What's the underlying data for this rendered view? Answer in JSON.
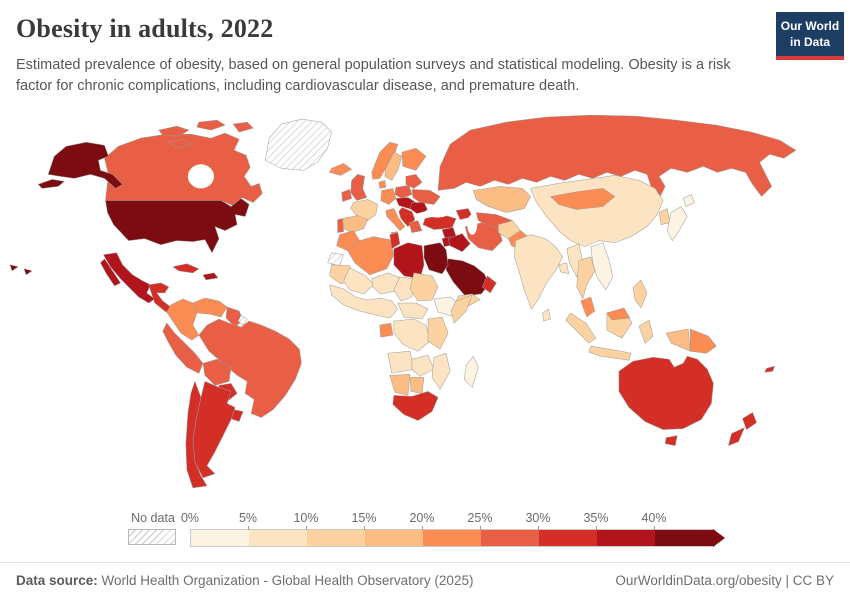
{
  "header": {
    "title": "Obesity in adults, 2022",
    "subtitle": "Estimated prevalence of obesity, based on general population surveys and statistical modeling. Obesity is a risk factor for chronic complications, including cardiovascular disease, and premature death.",
    "logo": {
      "line1": "Our World",
      "line2": "in Data",
      "bg": "#1d3d63",
      "accent": "#d73a3a"
    }
  },
  "legend": {
    "no_data_label": "No data",
    "tick_labels": [
      "0%",
      "5%",
      "10%",
      "15%",
      "20%",
      "25%",
      "30%",
      "35%",
      "40%"
    ],
    "bin_ranges": [
      "0–5%",
      "5–10%",
      "10–15%",
      "15–20%",
      "20–25%",
      "25–30%",
      "30–35%",
      "35–40%",
      "40%+"
    ],
    "bin_colors": [
      "#fdf3e2",
      "#fce4c2",
      "#fbd2a0",
      "#fbbd83",
      "#fb8d54",
      "#e95f45",
      "#d32f27",
      "#b1141a",
      "#7c0c11"
    ]
  },
  "footer": {
    "source_label": "Data source:",
    "source_text": " World Health Organization - Global Health Observatory (2025)",
    "credit": "OurWorldinData.org/obesity | CC BY"
  },
  "chart_data": {
    "type": "choropleth",
    "title": "Obesity in adults, 2022",
    "unit": "share of adults with obesity (%)",
    "no_data_label": "No data",
    "bins": [
      "0–5%",
      "5–10%",
      "10–15%",
      "15–20%",
      "20–25%",
      "25–30%",
      "30–35%",
      "35–40%",
      "40%+"
    ],
    "regions": [
      {
        "id": "canada",
        "name": "Canada",
        "bin": 5
      },
      {
        "id": "canada-arctic",
        "name": "Canada (Arctic islands)",
        "bin": 5
      },
      {
        "id": "usa",
        "name": "United States",
        "bin": 8
      },
      {
        "id": "usa-alaska",
        "name": "United States (Alaska)",
        "bin": 8
      },
      {
        "id": "usa-hawaii",
        "name": "United States (Hawaii)",
        "bin": 8
      },
      {
        "id": "greenland",
        "name": "Greenland",
        "bin": "no_data"
      },
      {
        "id": "mexico",
        "name": "Mexico",
        "bin": 7
      },
      {
        "id": "central-america",
        "name": "Central America",
        "bin": 6
      },
      {
        "id": "cuba",
        "name": "Cuba",
        "bin": 6
      },
      {
        "id": "hispaniola",
        "name": "Haiti / Dominican Republic",
        "bin": 7
      },
      {
        "id": "colombia",
        "name": "Colombia",
        "bin": 4
      },
      {
        "id": "venezuela",
        "name": "Venezuela",
        "bin": 4
      },
      {
        "id": "guyanas",
        "name": "Guyana / Suriname",
        "bin": 5
      },
      {
        "id": "french-guiana",
        "name": "French Guiana",
        "bin": "no_data"
      },
      {
        "id": "peru",
        "name": "Peru",
        "bin": 5
      },
      {
        "id": "brazil",
        "name": "Brazil",
        "bin": 5
      },
      {
        "id": "bolivia",
        "name": "Bolivia",
        "bin": 5
      },
      {
        "id": "paraguay",
        "name": "Paraguay",
        "bin": 6
      },
      {
        "id": "uruguay",
        "name": "Uruguay",
        "bin": 6
      },
      {
        "id": "argentina",
        "name": "Argentina",
        "bin": 6
      },
      {
        "id": "chile",
        "name": "Chile",
        "bin": 6
      },
      {
        "id": "iceland",
        "name": "Iceland",
        "bin": 4
      },
      {
        "id": "norway",
        "name": "Norway",
        "bin": 4
      },
      {
        "id": "sweden",
        "name": "Sweden",
        "bin": 3
      },
      {
        "id": "finland",
        "name": "Finland",
        "bin": 4
      },
      {
        "id": "denmark",
        "name": "Denmark",
        "bin": 4
      },
      {
        "id": "uk",
        "name": "United Kingdom",
        "bin": 5
      },
      {
        "id": "ireland",
        "name": "Ireland",
        "bin": 5
      },
      {
        "id": "france",
        "name": "France",
        "bin": 2
      },
      {
        "id": "spain",
        "name": "Spain",
        "bin": 3
      },
      {
        "id": "portugal",
        "name": "Portugal",
        "bin": 5
      },
      {
        "id": "germany",
        "name": "Germany",
        "bin": 4
      },
      {
        "id": "italy",
        "name": "Italy",
        "bin": 4
      },
      {
        "id": "poland",
        "name": "Poland",
        "bin": 5
      },
      {
        "id": "belarus-baltics",
        "name": "Belarus / Baltic states",
        "bin": 5
      },
      {
        "id": "ukraine",
        "name": "Ukraine",
        "bin": 5
      },
      {
        "id": "central-europe",
        "name": "Czechia / Slovakia / Hungary",
        "bin": 7
      },
      {
        "id": "romania",
        "name": "Romania",
        "bin": 7
      },
      {
        "id": "balkans",
        "name": "Balkans",
        "bin": 6
      },
      {
        "id": "greece",
        "name": "Greece",
        "bin": 5
      },
      {
        "id": "russia",
        "name": "Russia",
        "bin": 5
      },
      {
        "id": "kazakhstan",
        "name": "Kazakhstan",
        "bin": 3
      },
      {
        "id": "central-asia",
        "name": "Uzbekistan / Turkmenistan",
        "bin": 5
      },
      {
        "id": "caucasus",
        "name": "Caucasus",
        "bin": 6
      },
      {
        "id": "turkey",
        "name": "Turkey",
        "bin": 6
      },
      {
        "id": "syria",
        "name": "Syria",
        "bin": 7
      },
      {
        "id": "jordan-israel",
        "name": "Jordan / Israel",
        "bin": 7
      },
      {
        "id": "iraq",
        "name": "Iraq",
        "bin": 7
      },
      {
        "id": "iran",
        "name": "Iran",
        "bin": 5
      },
      {
        "id": "afghanistan",
        "name": "Afghanistan",
        "bin": 2
      },
      {
        "id": "pakistan",
        "name": "Pakistan",
        "bin": 4
      },
      {
        "id": "saudi-arabia",
        "name": "Saudi Arabia",
        "bin": 8
      },
      {
        "id": "oman",
        "name": "Oman",
        "bin": 6
      },
      {
        "id": "yemen",
        "name": "Yemen",
        "bin": 2
      },
      {
        "id": "india",
        "name": "India",
        "bin": 1
      },
      {
        "id": "bangladesh",
        "name": "Bangladesh",
        "bin": 1
      },
      {
        "id": "sri-lanka",
        "name": "Sri Lanka",
        "bin": 1
      },
      {
        "id": "china",
        "name": "China",
        "bin": 1
      },
      {
        "id": "mongolia",
        "name": "Mongolia",
        "bin": 4
      },
      {
        "id": "korea",
        "name": "South Korea",
        "bin": 2
      },
      {
        "id": "japan",
        "name": "Japan",
        "bin": 0
      },
      {
        "id": "myanmar",
        "name": "Myanmar",
        "bin": 1
      },
      {
        "id": "thailand",
        "name": "Thailand",
        "bin": 2
      },
      {
        "id": "vietnam",
        "name": "Vietnam",
        "bin": 0
      },
      {
        "id": "malaysia",
        "name": "Malaysia",
        "bin": 4
      },
      {
        "id": "sumatra",
        "name": "Indonesia (Sumatra)",
        "bin": 2
      },
      {
        "id": "borneo",
        "name": "Indonesia (Borneo)",
        "bin": 2
      },
      {
        "id": "malaysia-borneo",
        "name": "Malaysia (Borneo)",
        "bin": 4
      },
      {
        "id": "java",
        "name": "Indonesia (Java)",
        "bin": 2
      },
      {
        "id": "sulawesi",
        "name": "Indonesia (Sulawesi)",
        "bin": 2
      },
      {
        "id": "philippines",
        "name": "Philippines",
        "bin": 2
      },
      {
        "id": "new-guinea-west",
        "name": "Indonesia (Papua)",
        "bin": 3
      },
      {
        "id": "png",
        "name": "Papua New Guinea",
        "bin": 4
      },
      {
        "id": "fiji",
        "name": "Fiji",
        "bin": 6
      },
      {
        "id": "morocco",
        "name": "Morocco",
        "bin": 4
      },
      {
        "id": "western-sahara",
        "name": "Western Sahara",
        "bin": "no_data"
      },
      {
        "id": "algeria",
        "name": "Algeria",
        "bin": 4
      },
      {
        "id": "tunisia",
        "name": "Tunisia",
        "bin": 6
      },
      {
        "id": "libya",
        "name": "Libya",
        "bin": 7
      },
      {
        "id": "egypt",
        "name": "Egypt",
        "bin": 8
      },
      {
        "id": "mauritania",
        "name": "Mauritania",
        "bin": 2
      },
      {
        "id": "mali",
        "name": "Mali",
        "bin": 1
      },
      {
        "id": "niger",
        "name": "Niger",
        "bin": 1
      },
      {
        "id": "chad",
        "name": "Chad",
        "bin": 1
      },
      {
        "id": "sudan",
        "name": "Sudan",
        "bin": 2
      },
      {
        "id": "west-africa",
        "name": "West Africa (Senegal–Nigeria)",
        "bin": 1
      },
      {
        "id": "ethiopia",
        "name": "Ethiopia",
        "bin": 0
      },
      {
        "id": "somalia",
        "name": "Somalia",
        "bin": 2
      },
      {
        "id": "central-africa",
        "name": "Cameroon / Central African Rep.",
        "bin": 1
      },
      {
        "id": "gabon",
        "name": "Gabon",
        "bin": 4
      },
      {
        "id": "drc",
        "name": "DR Congo",
        "bin": 1
      },
      {
        "id": "east-africa",
        "name": "Kenya / Tanzania",
        "bin": 2
      },
      {
        "id": "angola",
        "name": "Angola",
        "bin": 1
      },
      {
        "id": "zambia",
        "name": "Zambia / Zimbabwe",
        "bin": 1
      },
      {
        "id": "mozambique",
        "name": "Mozambique",
        "bin": 1
      },
      {
        "id": "namibia",
        "name": "Namibia",
        "bin": 3
      },
      {
        "id": "botswana",
        "name": "Botswana",
        "bin": 3
      },
      {
        "id": "south-africa",
        "name": "South Africa",
        "bin": 6
      },
      {
        "id": "madagascar",
        "name": "Madagascar",
        "bin": 0
      },
      {
        "id": "australia",
        "name": "Australia",
        "bin": 6
      },
      {
        "id": "tasmania",
        "name": "Australia (Tasmania)",
        "bin": 6
      },
      {
        "id": "new-zealand",
        "name": "New Zealand",
        "bin": 6
      }
    ]
  }
}
